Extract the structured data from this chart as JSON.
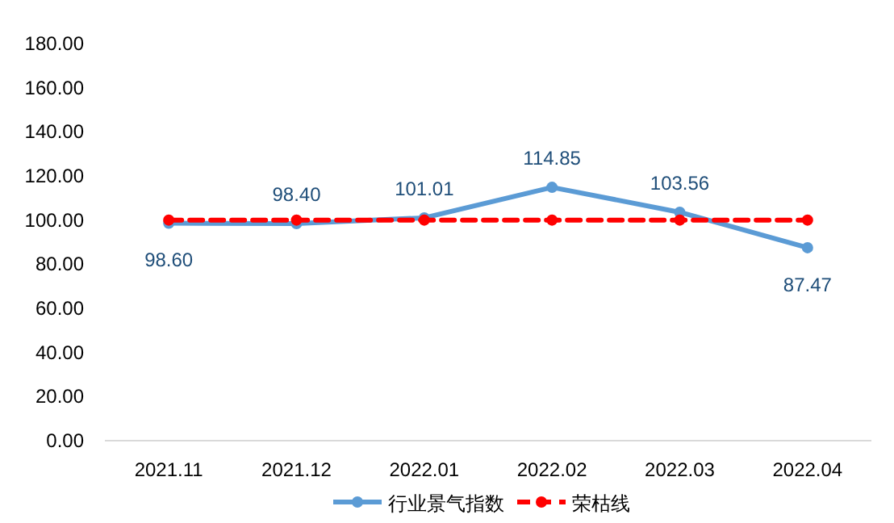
{
  "chart_data": {
    "type": "line",
    "categories": [
      "2021.11",
      "2021.12",
      "2022.01",
      "2022.02",
      "2022.03",
      "2022.04"
    ],
    "series": [
      {
        "name": "行业景气指数",
        "color": "#5b9bd5",
        "values": [
          98.6,
          98.4,
          101.01,
          114.85,
          103.56,
          87.47
        ],
        "value_labels": [
          "98.60",
          "98.40",
          "101.01",
          "114.85",
          "103.56",
          "87.47"
        ],
        "line_style": "solid"
      },
      {
        "name": "荣枯线",
        "color": "#ff0000",
        "values": [
          100,
          100,
          100,
          100,
          100,
          100
        ],
        "line_style": "dashed"
      }
    ],
    "ylim": [
      0,
      180
    ],
    "yticks": [
      {
        "value": 0,
        "label": "0.00"
      },
      {
        "value": 20,
        "label": "20.00"
      },
      {
        "value": 40,
        "label": "40.00"
      },
      {
        "value": 60,
        "label": "60.00"
      },
      {
        "value": 80,
        "label": "80.00"
      },
      {
        "value": 100,
        "label": "100.00"
      },
      {
        "value": 120,
        "label": "120.00"
      },
      {
        "value": 140,
        "label": "140.00"
      },
      {
        "value": 160,
        "label": "160.00"
      },
      {
        "value": 180,
        "label": "180.00"
      }
    ],
    "grid": false,
    "legend": "bottom",
    "marker": "circle"
  }
}
